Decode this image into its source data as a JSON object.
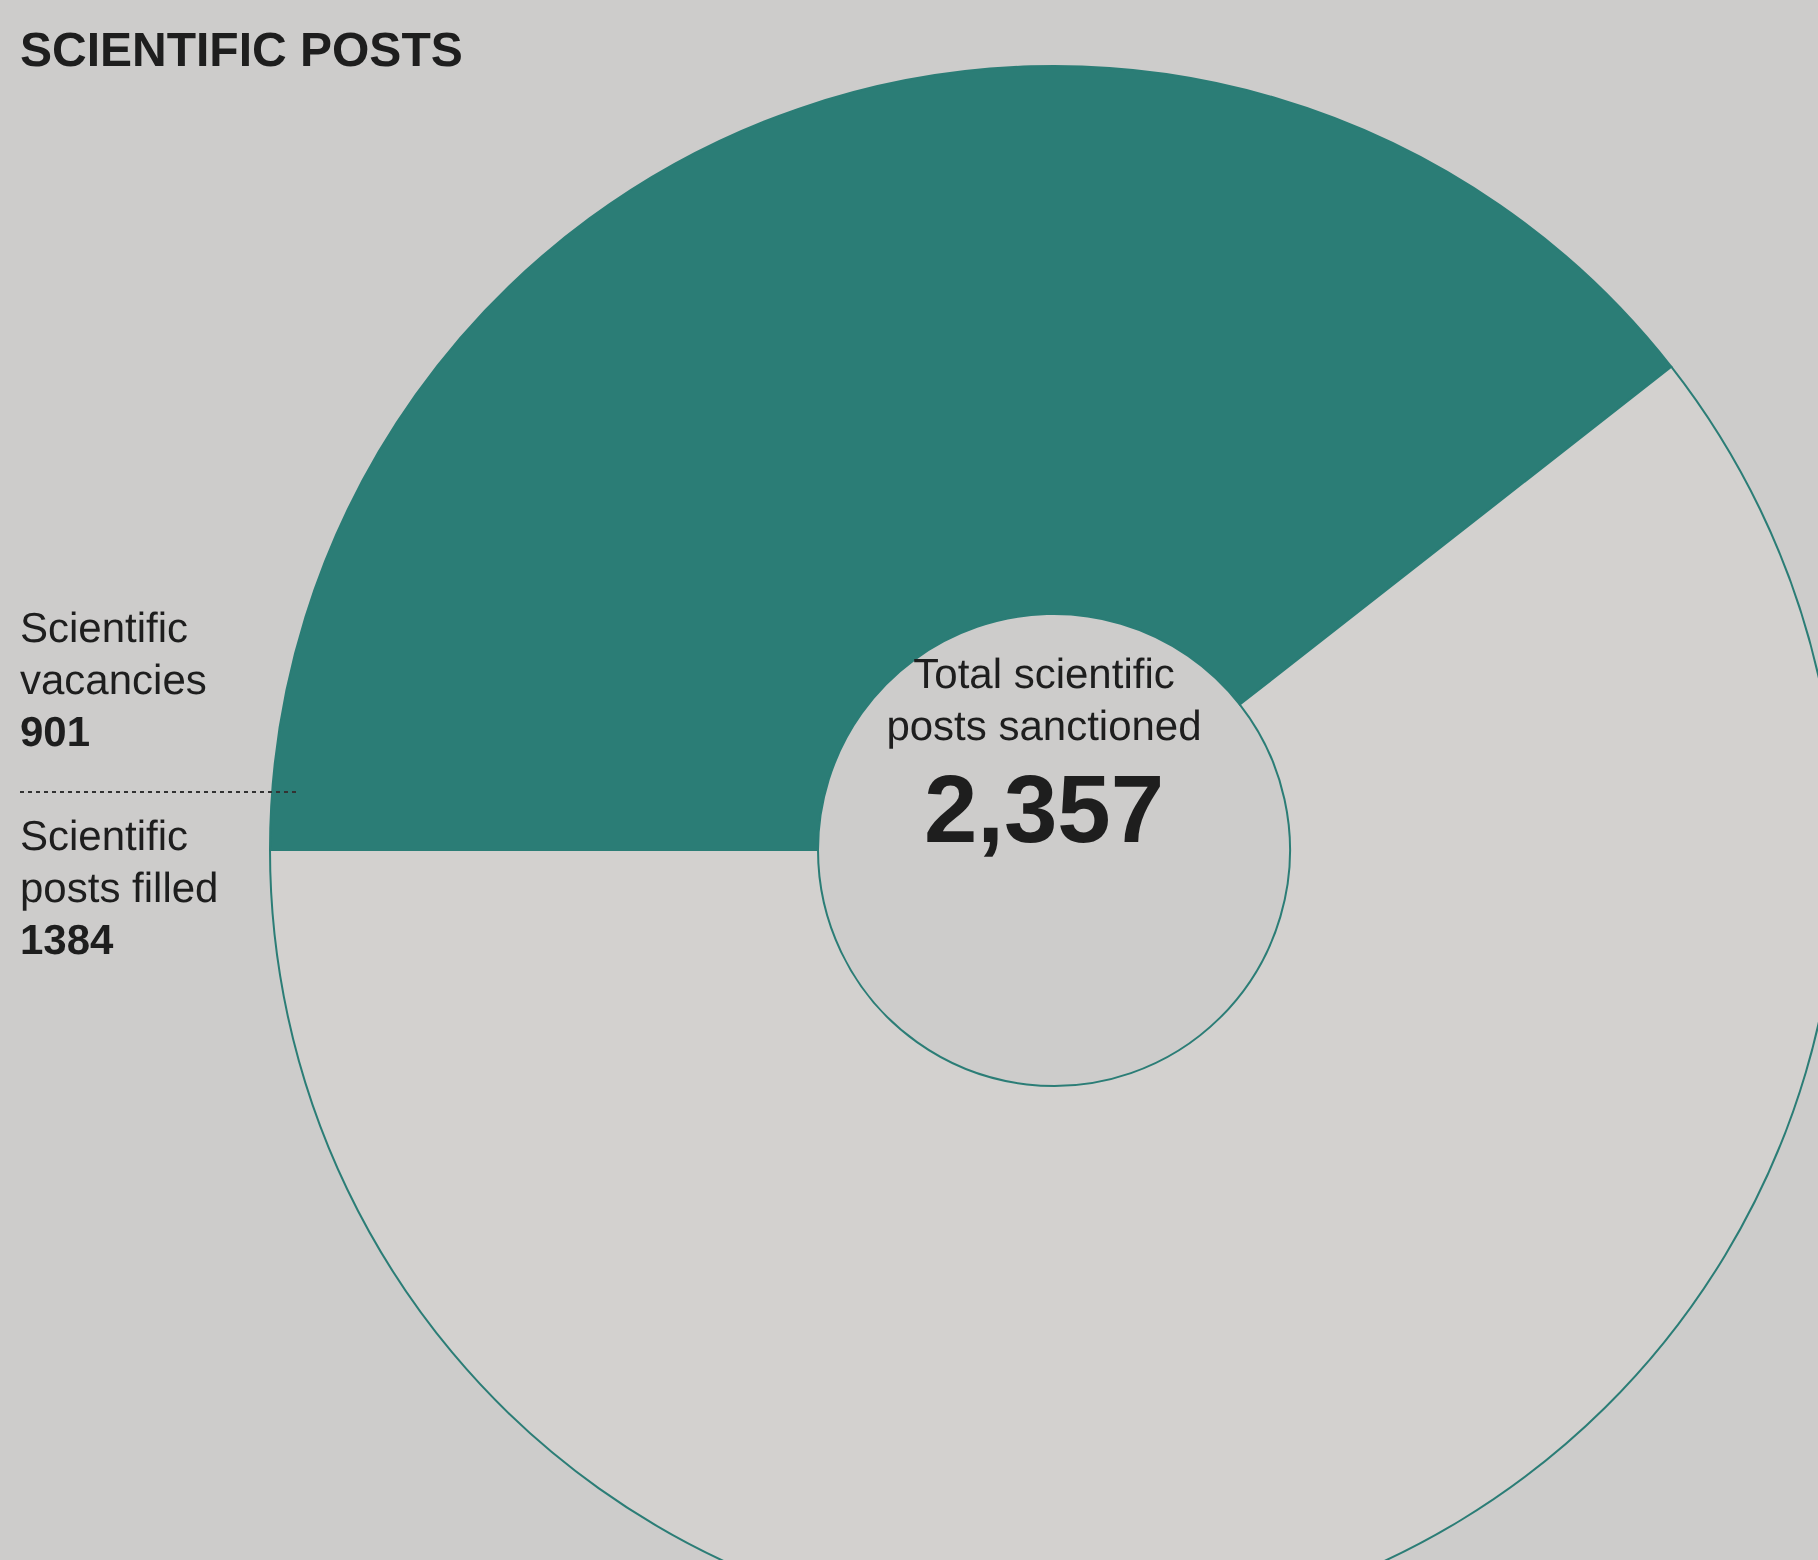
{
  "chart_data": {
    "type": "donut",
    "title": "SCIENTIFIC POSTS",
    "categories": [
      "Scientific vacancies",
      "Scientific posts filled"
    ],
    "values": [
      901,
      1384
    ],
    "colors": [
      "#2b7d76",
      "#d3d1cf"
    ],
    "data_labels": true,
    "annotations": [
      "Total scientific posts sanctioned",
      "2,357"
    ]
  }
}
